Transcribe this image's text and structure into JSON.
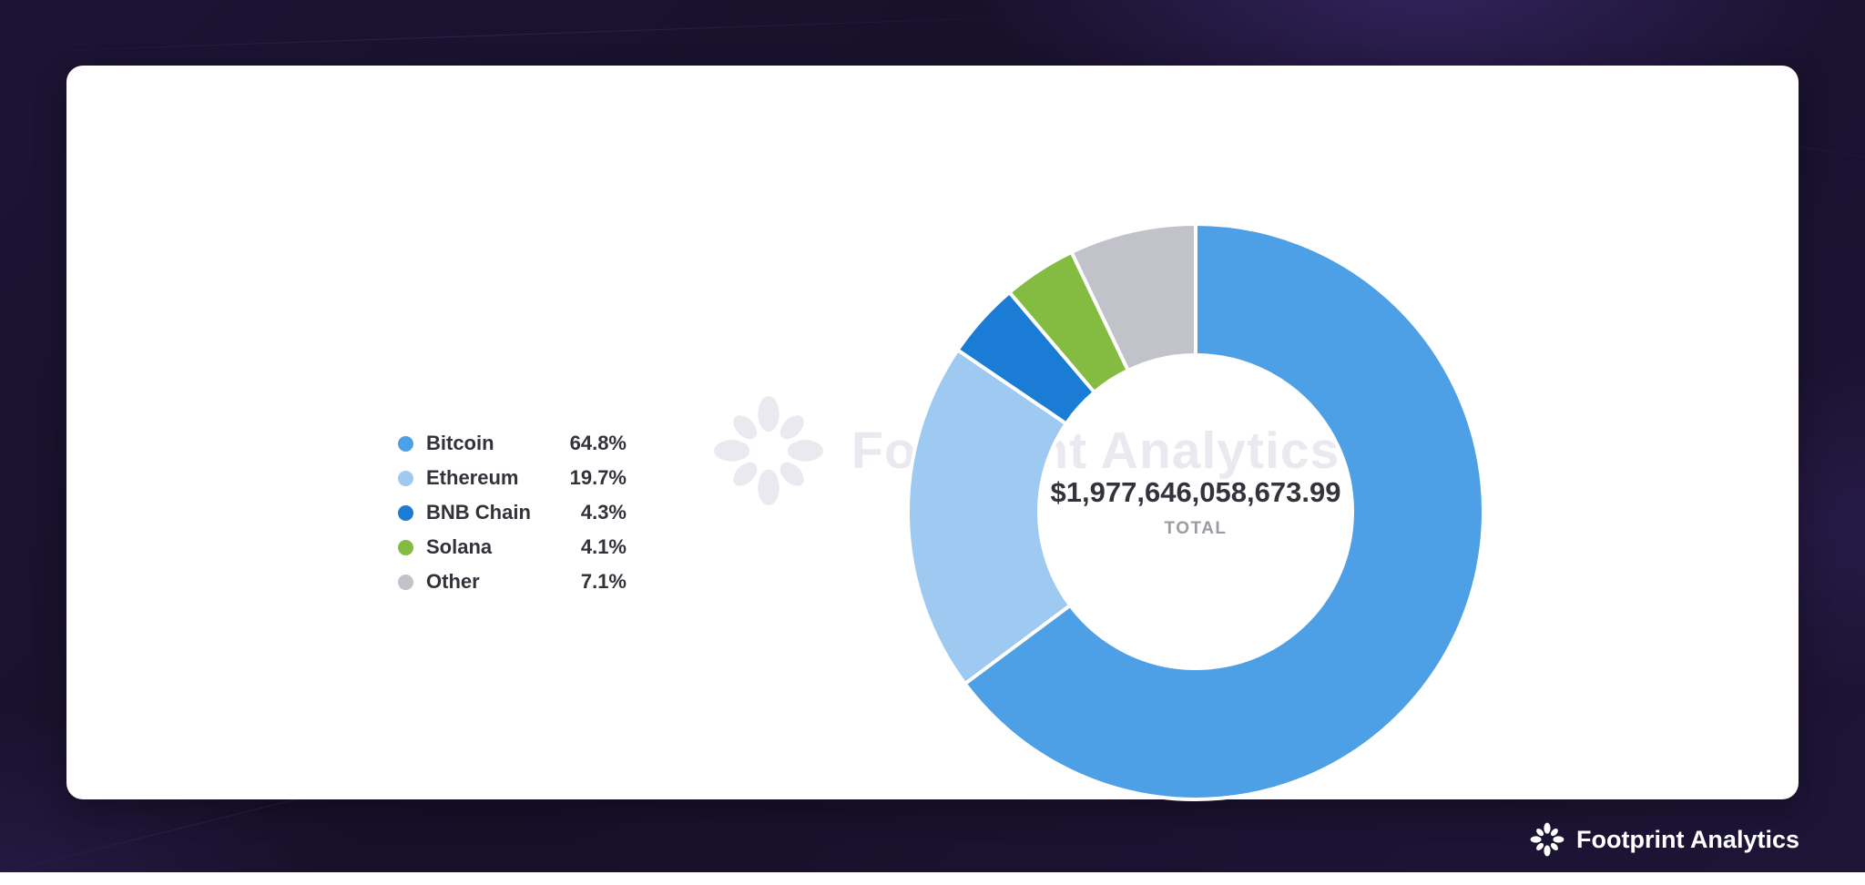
{
  "watermark": {
    "text": "Footprint Analytics"
  },
  "footer": {
    "logo_text": "Footprint Analytics"
  },
  "chart_data": {
    "type": "pie",
    "donut": true,
    "start_angle": "top",
    "direction": "clockwise",
    "legend_position": "left",
    "center_label": "$1,977,646,058,673.99",
    "center_sublabel": "TOTAL",
    "categories": [
      "Bitcoin",
      "Ethereum",
      "BNB Chain",
      "Solana",
      "Other"
    ],
    "values": [
      64.8,
      19.7,
      4.3,
      4.1,
      7.1
    ],
    "labels": [
      "64.8%",
      "19.7%",
      "4.3%",
      "4.1%",
      "7.1%"
    ],
    "colors": [
      "#4D9FE6",
      "#9EC9F0",
      "#1B7CD6",
      "#83BC41",
      "#C2C2CA"
    ],
    "background_card_color": "#ffffff",
    "page_background_color": "#171029"
  }
}
